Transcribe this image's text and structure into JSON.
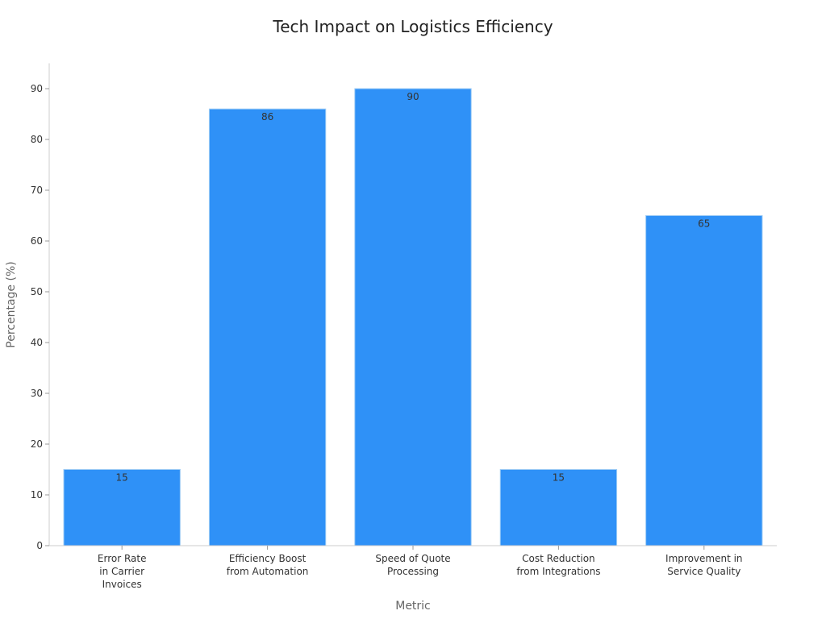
{
  "chart_data": {
    "type": "bar",
    "title": "Tech Impact on Logistics Efficiency",
    "xlabel": "Metric",
    "ylabel": "Percentage (%)",
    "ylim": [
      0,
      95
    ],
    "yticks": [
      0,
      10,
      20,
      30,
      40,
      50,
      60,
      70,
      80,
      90
    ],
    "grid": false,
    "categories": [
      [
        "Error Rate",
        "in Carrier",
        "Invoices"
      ],
      [
        "Efficiency Boost",
        "from Automation"
      ],
      [
        "Speed of Quote",
        "Processing"
      ],
      [
        "Cost Reduction",
        "from Integrations"
      ],
      [
        "Improvement in",
        "Service Quality"
      ]
    ],
    "values": [
      15,
      86,
      90,
      15,
      65
    ],
    "bar_color": "#2F91F7",
    "bar_edge_color": "#9CCBF5"
  }
}
